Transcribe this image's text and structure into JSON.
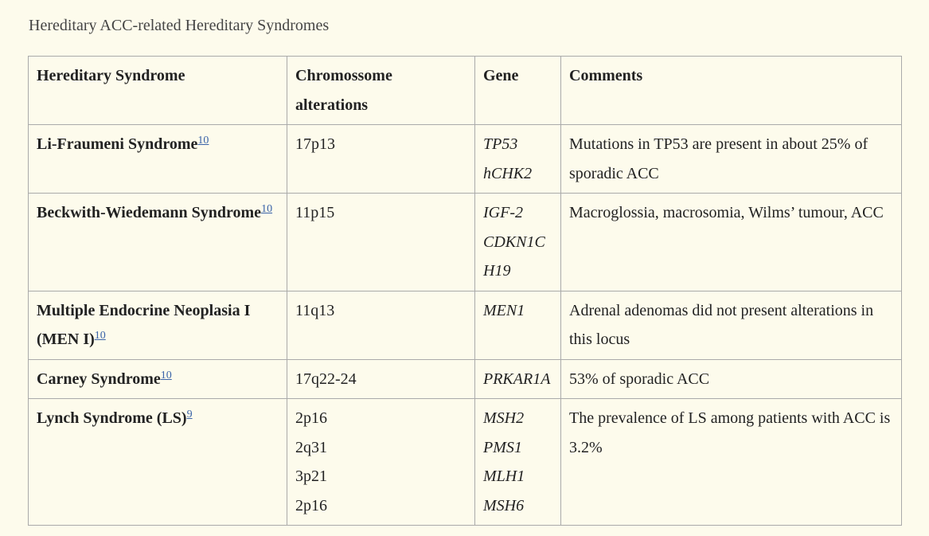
{
  "caption": "Hereditary ACC-related Hereditary Syndromes",
  "headers": [
    "Hereditary Syndrome",
    "Chromossome alterations",
    "Gene",
    "Comments"
  ],
  "rows": [
    {
      "syndrome": "Li-Fraumeni Syndrome",
      "ref": "10",
      "alterations": [
        "17p13"
      ],
      "genes": [
        "TP53",
        "hCHK2"
      ],
      "comment": "Mutations in TP53 are present in about 25% of sporadic ACC"
    },
    {
      "syndrome": "Beckwith-Wiedemann Syndrome",
      "ref": "10",
      "alterations": [
        "11p15"
      ],
      "genes": [
        "IGF-2",
        "CDKN1C",
        "H19"
      ],
      "comment": "Macroglossia, macrosomia, Wilms’ tumour, ACC"
    },
    {
      "syndrome": "Multiple Endocrine Neoplasia I (MEN I)",
      "ref": "10",
      "alterations": [
        "11q13"
      ],
      "genes": [
        "MEN1"
      ],
      "comment": "Adrenal adenomas did not present alterations in this locus"
    },
    {
      "syndrome": "Carney Syndrome",
      "ref": "10",
      "alterations": [
        "17q22-24"
      ],
      "genes": [
        "PRKAR1A"
      ],
      "comment": "53% of sporadic ACC"
    },
    {
      "syndrome": "Lynch Syndrome (LS)",
      "ref": "9",
      "alterations": [
        "2p16",
        "2q31",
        "3p21",
        "2p16"
      ],
      "genes": [
        "MSH2",
        "PMS1",
        "MLH1",
        "MSH6"
      ],
      "comment": "The prevalence of LS among patients with ACC is 3.2%"
    }
  ]
}
